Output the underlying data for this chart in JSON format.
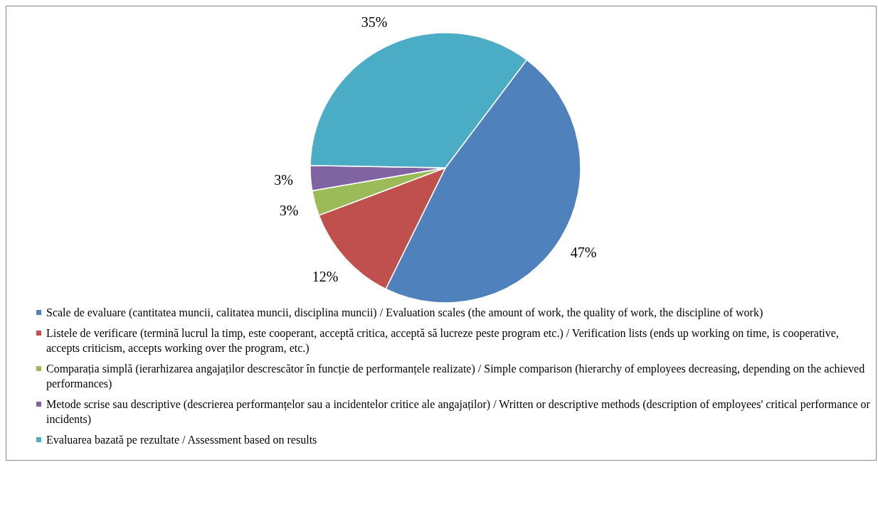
{
  "chart_data": {
    "type": "pie",
    "categories": [
      "Scale de evaluare (cantitatea muncii, calitatea muncii, disciplina muncii) / Evaluation scales (the amount of work, the quality of work, the discipline of work)",
      "Listele de verificare (termină lucrul la timp, este cooperant, acceptă critica, acceptă să lucreze peste program etc.) / Verification lists (ends up working on time, is cooperative, accepts criticism, accepts working over the program, etc.)",
      "Comparația simplă (ierarhizarea angajaților descrescător în funcție de performanțele realizate) / Simple comparison (hierarchy of employees decreasing, depending on the achieved performances)",
      "Metode scrise sau descriptive (descrierea performanțelor sau a incidentelor critice ale angajaților) / Written or descriptive methods (description of employees' critical performance or incidents)",
      "Evaluarea bazată pe rezultate / Assessment based on results"
    ],
    "values": [
      47,
      12,
      3,
      3,
      35
    ],
    "colors": [
      "#4f81bd",
      "#c0504d",
      "#9bbb59",
      "#8064a2",
      "#4bacc6"
    ],
    "value_labels": [
      "47%",
      "12%",
      "3%",
      "3%",
      "35%"
    ],
    "legend": "bottom"
  }
}
